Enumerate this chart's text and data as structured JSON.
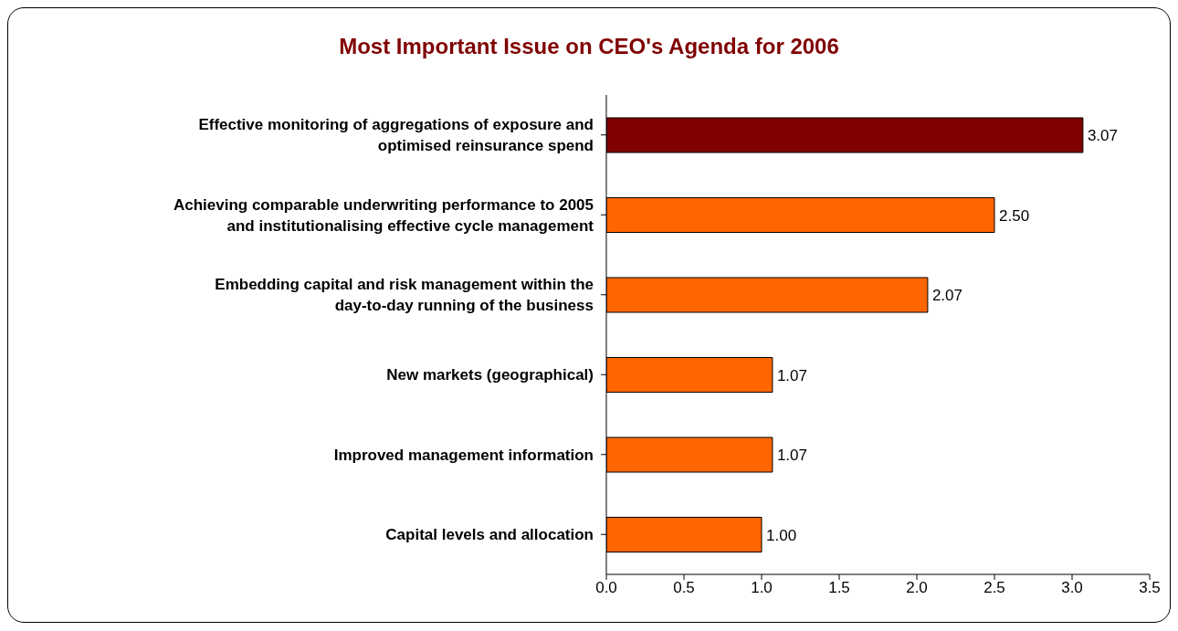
{
  "chart_data": {
    "type": "bar",
    "orientation": "horizontal",
    "title": "Most Important Issue on CEO's Agenda for 2006",
    "categories": [
      "Effective monitoring of aggregations of exposure and optimised reinsurance spend",
      "Achieving comparable underwriting performance to 2005 and institutionalising effective cycle management",
      "Embedding capital and risk management within the day-to-day running of the business",
      "New markets (geographical)",
      "Improved management information",
      "Capital levels and allocation"
    ],
    "values": [
      3.07,
      2.5,
      2.07,
      1.07,
      1.07,
      1.0
    ],
    "value_labels": [
      "3.07",
      "2.50",
      "2.07",
      "1.07",
      "1.07",
      "1.00"
    ],
    "colors": [
      "#800000",
      "#ff6600",
      "#ff6600",
      "#ff6600",
      "#ff6600",
      "#ff6600"
    ],
    "xlim": [
      0,
      3.5
    ],
    "xticks": [
      {
        "value": 0,
        "label": "0.0"
      },
      {
        "value": 0.5,
        "label": "0.5"
      },
      {
        "value": 1,
        "label": "1.0"
      },
      {
        "value": 1.5,
        "label": "1.5"
      },
      {
        "value": 2,
        "label": "2.0"
      },
      {
        "value": 2.5,
        "label": "2.5"
      },
      {
        "value": 3,
        "label": "3.0"
      },
      {
        "value": 3.5,
        "label": "3.5"
      }
    ],
    "grid": false,
    "legend": false
  }
}
